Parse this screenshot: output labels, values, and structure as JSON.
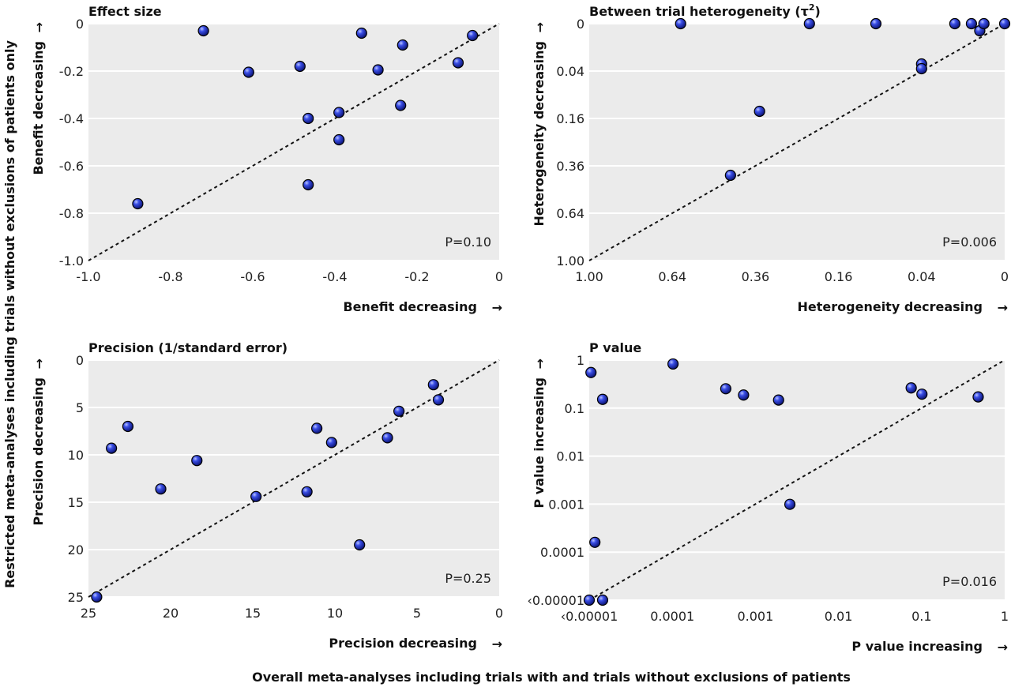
{
  "figure": {
    "y_label": "Restricted meta-analyses including trials without exclusions of patients only",
    "x_label": "Overall meta-analyses including trials with and trials without exclusions of patients"
  },
  "chart_data": [
    {
      "type": "scatter",
      "title": "Effect size",
      "xlabel": "Benefit decreasing",
      "ylabel": "Benefit decreasing",
      "arrow_x": "→",
      "arrow_y": "→",
      "xlim": [
        -1.0,
        0
      ],
      "ylim": [
        -1.0,
        0
      ],
      "xticks": [
        "-1.0",
        "-0.8",
        "-0.6",
        "-0.4",
        "-0.2",
        "0"
      ],
      "yticks": [
        "-1.0",
        "-0.8",
        "-0.6",
        "-0.4",
        "-0.2",
        "0"
      ],
      "xtick_values": [
        -1.0,
        -0.8,
        -0.6,
        -0.4,
        -0.2,
        0
      ],
      "ytick_values": [
        -1.0,
        -0.8,
        -0.6,
        -0.4,
        -0.2,
        0
      ],
      "x": [
        -0.72,
        -0.61,
        -0.485,
        -0.335,
        -0.235,
        -0.065,
        -0.1,
        -0.295,
        -0.465,
        -0.39,
        -0.24,
        -0.39,
        -0.465,
        -0.88
      ],
      "y": [
        -0.03,
        -0.205,
        -0.18,
        -0.04,
        -0.09,
        -0.05,
        -0.165,
        -0.195,
        -0.4,
        -0.375,
        -0.345,
        -0.49,
        -0.68,
        -0.76
      ],
      "annotation": "P=0.10",
      "diagonal": true,
      "scale": "linear",
      "grid": true
    },
    {
      "type": "scatter",
      "title": "Between trial heterogeneity (τ",
      "title_sup": "2",
      "title_end": ")",
      "xlabel": "Heterogeneity decreasing",
      "ylabel": "Heterogeneity decreasing",
      "arrow_x": "→",
      "arrow_y": "→",
      "xlim": [
        1.0,
        0
      ],
      "ylim": [
        1.0,
        0
      ],
      "xticks": [
        "1.00",
        "0.64",
        "0.36",
        "0.16",
        "0.04",
        "0"
      ],
      "yticks": [
        "1.00",
        "0.64",
        "0.36",
        "0.16",
        "0.04",
        "0"
      ],
      "xtick_values": [
        1.0,
        0.64,
        0.36,
        0.16,
        0.04,
        0
      ],
      "ytick_values": [
        1.0,
        0.64,
        0.36,
        0.16,
        0.04,
        0
      ],
      "x": [
        0.6084,
        0.2209,
        0.0961,
        0.0144,
        0.0064,
        0.0036,
        0.0025,
        0.0,
        0.04,
        0.04,
        0.3481,
        0.4356
      ],
      "y": [
        0.0,
        0.0,
        0.0,
        0.0,
        0.0,
        0.0009,
        0.0,
        0.0,
        0.0289,
        0.0361,
        0.1369,
        0.4096
      ],
      "annotation": "P=0.006",
      "diagonal": true,
      "scale": "sqrt",
      "grid": true
    },
    {
      "type": "scatter",
      "title": "Precision (1/standard error)",
      "xlabel": "Precision decreasing",
      "ylabel": "Precision decreasing",
      "arrow_x": "→",
      "arrow_y": "→",
      "xlim": [
        25,
        0
      ],
      "ylim": [
        25,
        0
      ],
      "xticks": [
        "25",
        "20",
        "15",
        "10",
        "5",
        "0"
      ],
      "yticks": [
        "25",
        "20",
        "15",
        "10",
        "5",
        "0"
      ],
      "xtick_values": [
        25,
        20,
        15,
        10,
        5,
        0
      ],
      "ytick_values": [
        25,
        20,
        15,
        10,
        5,
        0
      ],
      "x": [
        22.6,
        23.6,
        20.6,
        18.4,
        11.1,
        10.2,
        6.1,
        4.0,
        3.7,
        6.8,
        11.7,
        14.8,
        8.5,
        24.5
      ],
      "y": [
        7.0,
        9.3,
        13.6,
        10.6,
        7.2,
        8.7,
        5.4,
        2.6,
        4.2,
        8.2,
        13.9,
        14.4,
        19.5,
        25.0
      ],
      "annotation": "P=0.25",
      "diagonal": true,
      "scale": "linear",
      "grid": true
    },
    {
      "type": "scatter",
      "title": "P value",
      "xlabel": "P value increasing",
      "ylabel": "P value increasing",
      "arrow_x": "→",
      "arrow_y": "→",
      "xlim": [
        1e-05,
        1
      ],
      "ylim": [
        1e-05,
        1
      ],
      "xticks": [
        "‹0.00001",
        "0.0001",
        "0.001",
        "0.01",
        "0.1",
        "1"
      ],
      "yticks": [
        "‹0.00001",
        "0.0001",
        "0.001",
        "0.01",
        "0.1",
        "1"
      ],
      "xtick_values": [
        1e-05,
        0.0001,
        0.001,
        0.01,
        0.1,
        1
      ],
      "ytick_values": [
        1e-05,
        0.0001,
        0.001,
        0.01,
        0.1,
        1
      ],
      "x": [
        1e-05,
        1.45e-05,
        1.17e-05,
        1.05e-05,
        1.45e-05,
        0.000102,
        0.00044,
        0.00072,
        0.0019,
        0.0026,
        0.075,
        0.101,
        0.48
      ],
      "y": [
        1e-05,
        1e-05,
        0.00016,
        0.55,
        0.152,
        0.83,
        0.253,
        0.187,
        0.147,
        0.00099,
        0.263,
        0.195,
        0.171
      ],
      "annotation": "P=0.016",
      "diagonal": true,
      "scale": "log",
      "grid": true
    }
  ]
}
